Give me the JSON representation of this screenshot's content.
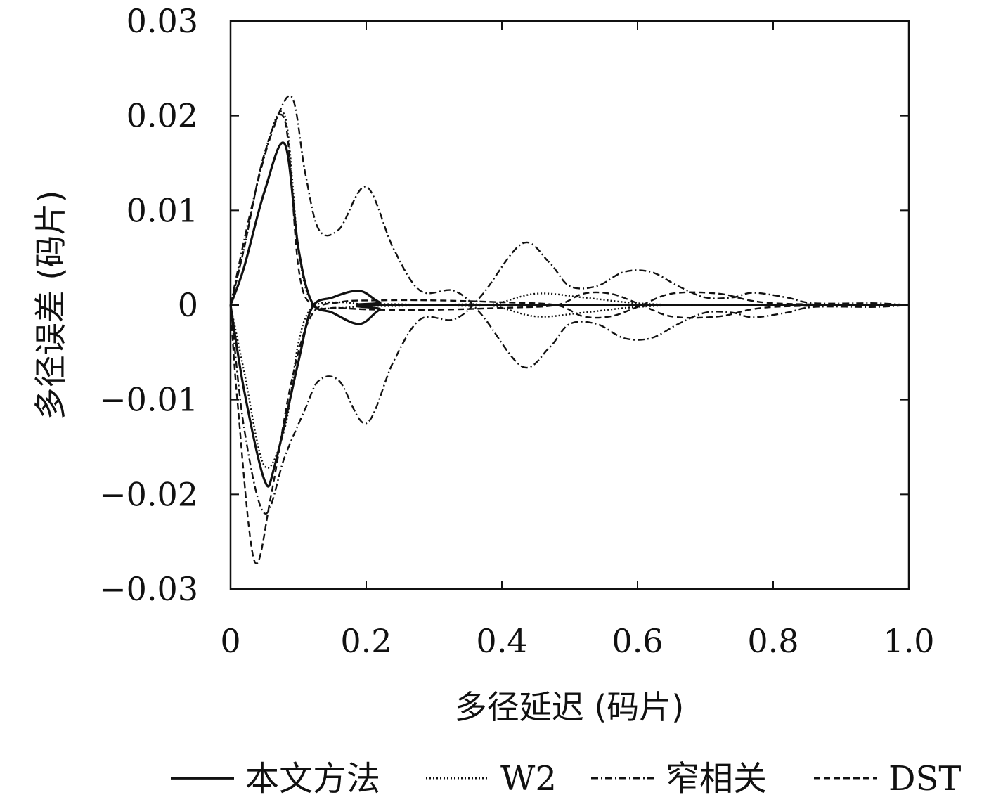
{
  "chart_data": {
    "type": "line",
    "xlabel": "多径延迟 (码片)",
    "ylabel": "多径误差 (码片)",
    "xlim": [
      0,
      1.0
    ],
    "ylim": [
      -0.03,
      0.03
    ],
    "x_ticks": [
      "0",
      "0.2",
      "0.4",
      "0.6",
      "0.8",
      "1.0"
    ],
    "y_ticks": [
      "0.03",
      "0.02",
      "0.01",
      "0",
      "−0.01",
      "−0.02",
      "−0.03"
    ],
    "legend_position": "bottom",
    "grid": false,
    "series": [
      {
        "name": "本文方法",
        "style": "solid",
        "upper": {
          "x": [
            0,
            0.02,
            0.05,
            0.08,
            0.1,
            0.12,
            0.15,
            0.19,
            0.22,
            0.25,
            1.0
          ],
          "y": [
            0,
            0.004,
            0.012,
            0.017,
            0.006,
            0.0003,
            -0.0008,
            -0.002,
            -0.0005,
            0,
            0
          ]
        },
        "lower": {
          "x": [
            0,
            0.02,
            0.05,
            0.065,
            0.1,
            0.12,
            0.15,
            0.19,
            0.22,
            0.25,
            1.0
          ],
          "y": [
            0,
            -0.009,
            -0.0185,
            -0.017,
            -0.006,
            -0.0003,
            0.0008,
            0.0015,
            0.0003,
            0,
            0
          ]
        }
      },
      {
        "name": "W2",
        "style": "dotted",
        "upper": {
          "x": [
            0,
            0.02,
            0.05,
            0.08,
            0.1,
            0.12,
            0.16,
            0.22,
            0.3,
            0.38,
            0.45,
            0.52,
            0.6,
            0.7,
            1.0
          ],
          "y": [
            0,
            0.006,
            0.016,
            0.02,
            0.006,
            0.0003,
            -0.0003,
            0.0001,
            0,
            0,
            0.0012,
            0.0008,
            0.0002,
            0,
            0
          ]
        },
        "lower": {
          "x": [
            0,
            0.02,
            0.05,
            0.08,
            0.1,
            0.12,
            0.16,
            0.22,
            0.3,
            0.38,
            0.45,
            0.52,
            0.6,
            0.7,
            1.0
          ],
          "y": [
            0,
            -0.007,
            -0.017,
            -0.013,
            -0.004,
            -0.0003,
            0.0003,
            -0.0001,
            0,
            0,
            -0.0012,
            -0.0008,
            -0.0002,
            0,
            0
          ]
        }
      },
      {
        "name": "窄相关",
        "style": "dash-dot",
        "upper": {
          "x": [
            0,
            0.03,
            0.06,
            0.09,
            0.11,
            0.13,
            0.16,
            0.2,
            0.24,
            0.28,
            0.33,
            0.37,
            0.43,
            0.47,
            0.5,
            0.54,
            0.58,
            0.62,
            0.66,
            0.7,
            0.74,
            0.77,
            0.82,
            0.86,
            0.95,
            1.0
          ],
          "y": [
            0,
            0.01,
            0.018,
            0.022,
            0.014,
            0.008,
            0.008,
            0.0125,
            0.006,
            0.0015,
            0.0015,
            -0.001,
            -0.0065,
            -0.0045,
            -0.002,
            -0.002,
            -0.0035,
            -0.0035,
            -0.002,
            -0.0008,
            -0.0008,
            -0.0013,
            -0.0008,
            -0.0002,
            -0.0002,
            0
          ]
        },
        "lower": {
          "x": [
            0,
            0.02,
            0.05,
            0.08,
            0.11,
            0.13,
            0.16,
            0.2,
            0.24,
            0.28,
            0.33,
            0.37,
            0.43,
            0.47,
            0.5,
            0.54,
            0.58,
            0.62,
            0.66,
            0.7,
            0.74,
            0.77,
            0.82,
            0.86,
            0.95,
            1.0
          ],
          "y": [
            0,
            -0.013,
            -0.022,
            -0.016,
            -0.011,
            -0.008,
            -0.008,
            -0.0125,
            -0.006,
            -0.0015,
            -0.0015,
            0.001,
            0.0065,
            0.0045,
            0.002,
            0.002,
            0.0035,
            0.0035,
            0.002,
            0.0008,
            0.0008,
            0.0013,
            0.0008,
            0.0002,
            0.0002,
            0
          ]
        }
      },
      {
        "name": "DST",
        "style": "dashed",
        "upper": {
          "x": [
            0,
            0.02,
            0.05,
            0.08,
            0.1,
            0.12,
            0.16,
            0.22,
            0.3,
            0.4,
            0.48,
            0.52,
            0.56,
            0.6,
            0.65,
            0.72,
            0.8,
            1.0
          ],
          "y": [
            0,
            0.006,
            0.016,
            0.0195,
            0.004,
            0,
            -0.0003,
            -0.0005,
            -0.0005,
            -0.0003,
            0,
            0.0012,
            0.0012,
            0.0002,
            -0.0012,
            -0.0012,
            -0.0002,
            0
          ]
        },
        "lower": {
          "x": [
            0,
            0.01,
            0.035,
            0.06,
            0.09,
            0.12,
            0.16,
            0.22,
            0.3,
            0.4,
            0.48,
            0.52,
            0.56,
            0.6,
            0.65,
            0.72,
            0.8,
            1.0
          ],
          "y": [
            0,
            -0.01,
            -0.027,
            -0.02,
            -0.008,
            -0.001,
            0.0003,
            0.0005,
            0.0005,
            0.0003,
            0,
            -0.0012,
            -0.0012,
            -0.0002,
            0.0012,
            0.0012,
            0.0002,
            0
          ]
        }
      }
    ]
  }
}
